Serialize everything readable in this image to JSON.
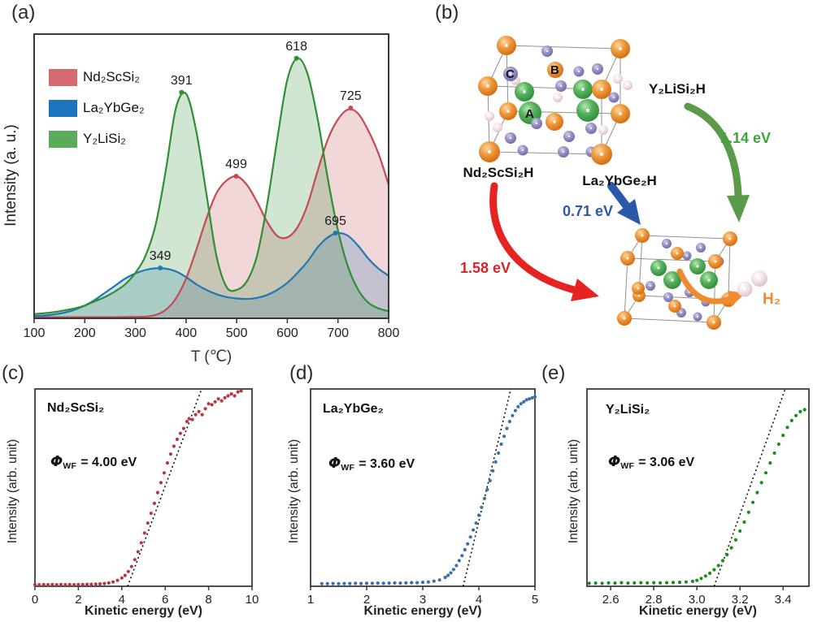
{
  "panels": {
    "a": {
      "label": "(a)",
      "xlabel": "T (℃)",
      "ylabel": "Intensity (a. u.)"
    },
    "b": {
      "label": "(b)",
      "reactants": [
        {
          "name": "Nd₂ScSi₂H",
          "energy": "1.58 eV"
        },
        {
          "name": "La₂YbGe₂H",
          "energy": "0.71 eV"
        },
        {
          "name": "Y₂LiSi₂H",
          "energy": "1.14 eV"
        }
      ],
      "product": "H₂",
      "site_labels": [
        "A",
        "B",
        "C"
      ]
    },
    "c": {
      "label": "(c)",
      "compound": "Nd₂ScSi₂",
      "phi_symbol": "Φ",
      "phi_sub": "WF",
      "phi_value": "= 4.00 eV",
      "xlabel": "Kinetic energy (eV)",
      "ylabel": "Intensity (arb. unit)"
    },
    "d": {
      "label": "(d)",
      "compound": "La₂YbGe₂",
      "phi_symbol": "Φ",
      "phi_sub": "WF",
      "phi_value": "= 3.60 eV",
      "xlabel": "Kinetic energy (eV)",
      "ylabel": "Intensity (arb. unit)"
    },
    "e": {
      "label": "(e)",
      "compound": "Y₂LiSi₂",
      "phi_symbol": "Φ",
      "phi_sub": "WF",
      "phi_value": "= 3.06 eV",
      "xlabel": "Kinetic energy (eV)",
      "ylabel": "Intensity (arb. unit)"
    }
  },
  "colors": {
    "tpd_red": "#c64a52",
    "tpd_blue": "#2277b5",
    "tpd_green": "#2f8f33",
    "legend_red": "#d56a70",
    "legend_blue": "#1b75bc",
    "legend_green": "#5cab5c",
    "scatter_red": "#b23a42",
    "scatter_blue": "#3a6fad",
    "scatter_green": "#1e8b1e",
    "arrow_red": "#e62320",
    "arrow_blue": "#2b58a8",
    "arrow_green": "#5a9a48",
    "arrow_orange": "#f08a2e",
    "energy_red": "#d8232a",
    "energy_blue": "#2b58a8",
    "energy_green": "#3da639",
    "h2_orange": "#ef8b2d",
    "atom_orange": "#e8821f",
    "atom_purple": "#8b86b9",
    "atom_green": "#44a049",
    "atom_pink": "#f2dcdc"
  },
  "chart_data": [
    {
      "id": "a",
      "type": "area",
      "title": "",
      "xlabel": "T (℃)",
      "ylabel": "Intensity (a. u.)",
      "xlim": [
        100,
        800
      ],
      "ylim": [
        0,
        1
      ],
      "grid": false,
      "legend_position": "upper-left",
      "xticks": [
        100,
        200,
        300,
        400,
        500,
        600,
        700,
        800
      ],
      "xtick_labels": [
        "100",
        "200",
        "300",
        "400",
        "500",
        "600",
        "700",
        "800"
      ],
      "x": [
        100,
        120,
        140,
        160,
        180,
        200,
        220,
        240,
        260,
        280,
        300,
        320,
        340,
        360,
        380,
        400,
        420,
        440,
        460,
        480,
        500,
        520,
        540,
        560,
        580,
        600,
        620,
        640,
        660,
        680,
        700,
        720,
        740,
        760,
        780,
        800
      ],
      "series": [
        {
          "name": "Nd₂ScSi₂",
          "color": "#c64a52",
          "values": [
            0.004,
            0.004,
            0.004,
            0.004,
            0.004,
            0.004,
            0.004,
            0.004,
            0.004,
            0.005,
            0.005,
            0.006,
            0.012,
            0.03,
            0.07,
            0.14,
            0.24,
            0.35,
            0.44,
            0.485,
            0.5,
            0.47,
            0.41,
            0.34,
            0.29,
            0.285,
            0.32,
            0.4,
            0.52,
            0.63,
            0.7,
            0.735,
            0.72,
            0.66,
            0.58,
            0.47
          ],
          "peaks": [
            {
              "x": 499,
              "y": 0.5,
              "label": "499"
            },
            {
              "x": 725,
              "y": 0.74,
              "label": "725"
            }
          ]
        },
        {
          "name": "La₂YbGe₂",
          "color": "#2277b5",
          "values": [
            0.008,
            0.01,
            0.014,
            0.02,
            0.03,
            0.045,
            0.065,
            0.09,
            0.115,
            0.14,
            0.158,
            0.17,
            0.176,
            0.175,
            0.165,
            0.145,
            0.12,
            0.1,
            0.085,
            0.075,
            0.07,
            0.068,
            0.072,
            0.082,
            0.1,
            0.125,
            0.16,
            0.2,
            0.25,
            0.285,
            0.3,
            0.29,
            0.255,
            0.21,
            0.175,
            0.15
          ],
          "peaks": [
            {
              "x": 349,
              "y": 0.177,
              "label": "349"
            },
            {
              "x": 695,
              "y": 0.3,
              "label": "695"
            }
          ]
        },
        {
          "name": "Y₂LiSi₂",
          "color": "#2f8f33",
          "values": [
            0.015,
            0.018,
            0.022,
            0.028,
            0.035,
            0.045,
            0.06,
            0.075,
            0.095,
            0.12,
            0.16,
            0.22,
            0.33,
            0.52,
            0.74,
            0.79,
            0.66,
            0.44,
            0.22,
            0.11,
            0.1,
            0.13,
            0.22,
            0.4,
            0.63,
            0.84,
            0.915,
            0.86,
            0.7,
            0.49,
            0.31,
            0.18,
            0.1,
            0.055,
            0.035,
            0.025
          ],
          "peaks": [
            {
              "x": 391,
              "y": 0.795,
              "label": "391"
            },
            {
              "x": 618,
              "y": 0.915,
              "label": "618"
            }
          ]
        }
      ]
    },
    {
      "id": "c",
      "type": "scatter",
      "color": "#b23a42",
      "xlabel": "Kinetic energy (eV)",
      "ylabel": "Intensity (arb. unit)",
      "xlim": [
        0,
        10
      ],
      "ylim": [
        0,
        1
      ],
      "grid": false,
      "xticks": [
        0,
        2,
        4,
        6,
        8,
        10
      ],
      "xtick_labels": [
        "0",
        "2",
        "4",
        "6",
        "8",
        "10"
      ],
      "work_function_eV": 4.0,
      "fit_line": [
        [
          4.27,
          0
        ],
        [
          7.68,
          1.0
        ]
      ],
      "points": [
        [
          0.0,
          0.008
        ],
        [
          0.2,
          0.008
        ],
        [
          0.4,
          0.009
        ],
        [
          0.6,
          0.008
        ],
        [
          0.8,
          0.009
        ],
        [
          1.0,
          0.008
        ],
        [
          1.2,
          0.009
        ],
        [
          1.4,
          0.008
        ],
        [
          1.6,
          0.009
        ],
        [
          1.8,
          0.008
        ],
        [
          2.0,
          0.009
        ],
        [
          2.2,
          0.009
        ],
        [
          2.4,
          0.01
        ],
        [
          2.6,
          0.01
        ],
        [
          2.8,
          0.011
        ],
        [
          3.0,
          0.012
        ],
        [
          3.2,
          0.014
        ],
        [
          3.4,
          0.017
        ],
        [
          3.6,
          0.022
        ],
        [
          3.8,
          0.03
        ],
        [
          4.0,
          0.042
        ],
        [
          4.15,
          0.055
        ],
        [
          4.3,
          0.075
        ],
        [
          4.45,
          0.1
        ],
        [
          4.6,
          0.135
        ],
        [
          4.75,
          0.175
        ],
        [
          4.9,
          0.22
        ],
        [
          5.05,
          0.27
        ],
        [
          5.2,
          0.32
        ],
        [
          5.35,
          0.37
        ],
        [
          5.5,
          0.42
        ],
        [
          5.65,
          0.475
        ],
        [
          5.8,
          0.525
        ],
        [
          5.95,
          0.575
        ],
        [
          6.1,
          0.625
        ],
        [
          6.25,
          0.67
        ],
        [
          6.4,
          0.71
        ],
        [
          6.55,
          0.745
        ],
        [
          6.7,
          0.775
        ],
        [
          6.85,
          0.8
        ],
        [
          7.0,
          0.835
        ],
        [
          7.1,
          0.85
        ],
        [
          7.25,
          0.845
        ],
        [
          7.4,
          0.87
        ],
        [
          7.55,
          0.885
        ],
        [
          7.7,
          0.87
        ],
        [
          7.85,
          0.9
        ],
        [
          8.0,
          0.925
        ],
        [
          8.15,
          0.92
        ],
        [
          8.3,
          0.935
        ],
        [
          8.45,
          0.95
        ],
        [
          8.6,
          0.94
        ],
        [
          8.75,
          0.955
        ],
        [
          8.9,
          0.965
        ],
        [
          9.05,
          0.975
        ],
        [
          9.2,
          0.965
        ],
        [
          9.35,
          0.985
        ],
        [
          9.5,
          0.99
        ]
      ]
    },
    {
      "id": "d",
      "type": "scatter",
      "color": "#3a6fad",
      "xlabel": "Kinetic energy (eV)",
      "ylabel": "Intensity (arb. unit)",
      "xlim": [
        1,
        5
      ],
      "ylim": [
        0,
        1
      ],
      "grid": false,
      "xticks": [
        1,
        2,
        3,
        4,
        5
      ],
      "xtick_labels": [
        "1",
        "2",
        "3",
        "4",
        "5"
      ],
      "work_function_eV": 3.6,
      "fit_line": [
        [
          3.72,
          0
        ],
        [
          4.57,
          1.0
        ]
      ],
      "points": [
        [
          1.2,
          0.013
        ],
        [
          1.3,
          0.013
        ],
        [
          1.4,
          0.014
        ],
        [
          1.5,
          0.013
        ],
        [
          1.6,
          0.014
        ],
        [
          1.7,
          0.014
        ],
        [
          1.8,
          0.015
        ],
        [
          1.9,
          0.014
        ],
        [
          2.0,
          0.015
        ],
        [
          2.1,
          0.015
        ],
        [
          2.2,
          0.016
        ],
        [
          2.3,
          0.015
        ],
        [
          2.4,
          0.016
        ],
        [
          2.5,
          0.017
        ],
        [
          2.6,
          0.016
        ],
        [
          2.7,
          0.017
        ],
        [
          2.8,
          0.018
        ],
        [
          2.9,
          0.018
        ],
        [
          3.0,
          0.02
        ],
        [
          3.1,
          0.022
        ],
        [
          3.2,
          0.026
        ],
        [
          3.3,
          0.032
        ],
        [
          3.4,
          0.045
        ],
        [
          3.45,
          0.055
        ],
        [
          3.5,
          0.068
        ],
        [
          3.55,
          0.085
        ],
        [
          3.6,
          0.105
        ],
        [
          3.65,
          0.13
        ],
        [
          3.7,
          0.155
        ],
        [
          3.75,
          0.185
        ],
        [
          3.8,
          0.215
        ],
        [
          3.85,
          0.25
        ],
        [
          3.9,
          0.285
        ],
        [
          3.95,
          0.32
        ],
        [
          4.0,
          0.36
        ],
        [
          4.05,
          0.4
        ],
        [
          4.1,
          0.445
        ],
        [
          4.15,
          0.49
        ],
        [
          4.2,
          0.535
        ],
        [
          4.25,
          0.585
        ],
        [
          4.3,
          0.63
        ],
        [
          4.35,
          0.675
        ],
        [
          4.4,
          0.72
        ],
        [
          4.45,
          0.76
        ],
        [
          4.5,
          0.8
        ],
        [
          4.55,
          0.835
        ],
        [
          4.6,
          0.865
        ],
        [
          4.65,
          0.89
        ],
        [
          4.7,
          0.91
        ],
        [
          4.75,
          0.925
        ],
        [
          4.8,
          0.935
        ],
        [
          4.85,
          0.945
        ],
        [
          4.9,
          0.95
        ],
        [
          4.95,
          0.955
        ],
        [
          5.0,
          0.96
        ]
      ]
    },
    {
      "id": "e",
      "type": "scatter",
      "color": "#1e8b1e",
      "xlabel": "Kinetic energy (eV)",
      "ylabel": "Intensity (arb. unit)",
      "xlim": [
        2.49,
        3.52
      ],
      "ylim": [
        0,
        1
      ],
      "grid": false,
      "xticks": [
        2.6,
        2.8,
        3.0,
        3.2,
        3.4
      ],
      "xtick_labels": [
        "2.6",
        "2.8",
        "3.0",
        "3.2",
        "3.4"
      ],
      "work_function_eV": 3.06,
      "fit_line": [
        [
          3.08,
          0
        ],
        [
          3.41,
          1.0
        ]
      ],
      "points": [
        [
          2.5,
          0.015
        ],
        [
          2.53,
          0.016
        ],
        [
          2.56,
          0.015
        ],
        [
          2.59,
          0.017
        ],
        [
          2.62,
          0.016
        ],
        [
          2.65,
          0.018
        ],
        [
          2.68,
          0.016
        ],
        [
          2.71,
          0.017
        ],
        [
          2.74,
          0.018
        ],
        [
          2.77,
          0.017
        ],
        [
          2.8,
          0.018
        ],
        [
          2.83,
          0.017
        ],
        [
          2.86,
          0.018
        ],
        [
          2.89,
          0.019
        ],
        [
          2.92,
          0.02
        ],
        [
          2.95,
          0.022
        ],
        [
          2.98,
          0.025
        ],
        [
          3.0,
          0.03
        ],
        [
          3.02,
          0.04
        ],
        [
          3.04,
          0.052
        ],
        [
          3.06,
          0.066
        ],
        [
          3.08,
          0.084
        ],
        [
          3.1,
          0.105
        ],
        [
          3.12,
          0.13
        ],
        [
          3.14,
          0.16
        ],
        [
          3.16,
          0.195
        ],
        [
          3.18,
          0.235
        ],
        [
          3.2,
          0.28
        ],
        [
          3.22,
          0.325
        ],
        [
          3.24,
          0.375
        ],
        [
          3.26,
          0.425
        ],
        [
          3.28,
          0.475
        ],
        [
          3.3,
          0.525
        ],
        [
          3.32,
          0.575
        ],
        [
          3.34,
          0.625
        ],
        [
          3.36,
          0.675
        ],
        [
          3.38,
          0.72
        ],
        [
          3.4,
          0.765
        ],
        [
          3.42,
          0.805
        ],
        [
          3.44,
          0.84
        ],
        [
          3.46,
          0.865
        ],
        [
          3.48,
          0.885
        ],
        [
          3.5,
          0.895
        ]
      ]
    }
  ]
}
